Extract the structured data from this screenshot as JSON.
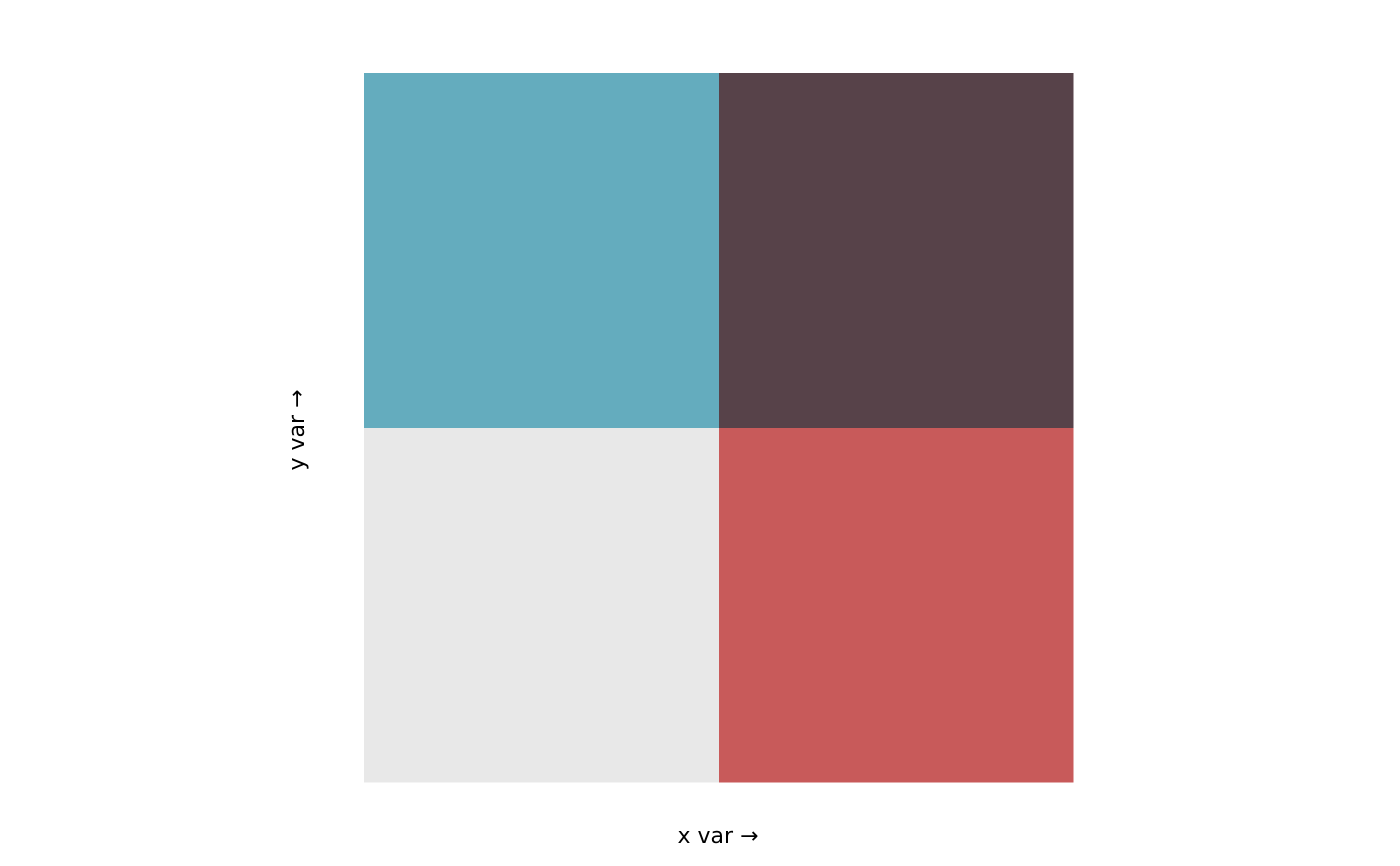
{
  "chart_data": {
    "type": "bivariate-grid",
    "x_label": "x var →",
    "y_label": "y var →",
    "colors": [
      [
        "#64acbe",
        "#574249"
      ],
      [
        "#e8e8e8",
        "#c85a5a"
      ]
    ]
  }
}
